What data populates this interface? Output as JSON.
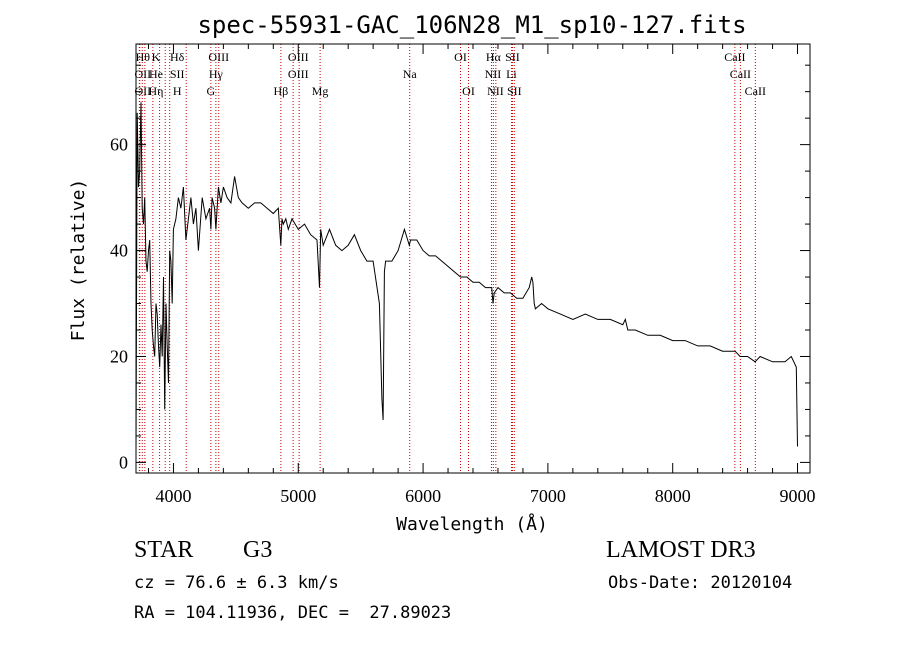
{
  "chart_data": {
    "type": "line",
    "title": "spec-55931-GAC_106N28_M1_sp10-127.fits",
    "xlabel": "Wavelength (Å)",
    "ylabel": "Flux (relative)",
    "xlim": [
      3700,
      9100
    ],
    "ylim": [
      -2,
      79
    ],
    "xticks": [
      4000,
      5000,
      6000,
      7000,
      8000,
      9000
    ],
    "yticks": [
      0,
      20,
      40,
      60
    ],
    "series": [
      {
        "name": "spectrum",
        "x": [
          3700,
          3710,
          3720,
          3730,
          3740,
          3750,
          3760,
          3770,
          3780,
          3790,
          3800,
          3810,
          3820,
          3830,
          3840,
          3850,
          3860,
          3870,
          3880,
          3890,
          3900,
          3910,
          3920,
          3930,
          3940,
          3950,
          3960,
          3970,
          3980,
          3990,
          4000,
          4020,
          4040,
          4060,
          4080,
          4100,
          4120,
          4140,
          4160,
          4180,
          4200,
          4230,
          4260,
          4290,
          4300,
          4310,
          4330,
          4340,
          4360,
          4380,
          4400,
          4430,
          4460,
          4490,
          4520,
          4550,
          4600,
          4650,
          4700,
          4750,
          4800,
          4840,
          4860,
          4870,
          4880,
          4900,
          4920,
          4950,
          5000,
          5050,
          5100,
          5150,
          5170,
          5180,
          5200,
          5250,
          5300,
          5350,
          5400,
          5450,
          5500,
          5550,
          5600,
          5650,
          5670,
          5680,
          5690,
          5700,
          5750,
          5800,
          5850,
          5890,
          5900,
          5950,
          6000,
          6050,
          6100,
          6150,
          6200,
          6250,
          6300,
          6350,
          6400,
          6450,
          6500,
          6550,
          6560,
          6570,
          6600,
          6650,
          6700,
          6750,
          6800,
          6850,
          6870,
          6880,
          6890,
          6900,
          6950,
          7000,
          7100,
          7200,
          7300,
          7400,
          7500,
          7600,
          7620,
          7640,
          7700,
          7800,
          7900,
          8000,
          8100,
          8200,
          8300,
          8400,
          8500,
          8540,
          8600,
          8660,
          8700,
          8800,
          8900,
          8950,
          8990,
          9000
        ],
        "values": [
          2,
          66,
          52,
          55,
          68,
          48,
          45,
          50,
          38,
          36,
          40,
          42,
          30,
          25,
          22,
          20,
          30,
          28,
          22,
          18,
          26,
          20,
          35,
          10,
          30,
          22,
          15,
          40,
          38,
          30,
          44,
          46,
          50,
          48,
          52,
          42,
          46,
          50,
          45,
          48,
          40,
          50,
          46,
          48,
          44,
          50,
          48,
          44,
          52,
          49,
          52,
          50,
          49,
          54,
          50,
          49,
          48,
          49,
          49,
          48,
          47,
          48,
          41,
          46,
          45,
          46,
          44,
          46,
          44,
          45,
          43,
          42,
          33,
          44,
          41,
          44,
          41,
          40,
          41,
          43,
          40,
          38,
          38,
          30,
          12,
          8,
          36,
          38,
          38,
          40,
          44,
          41,
          42,
          42,
          40,
          39,
          39,
          38,
          37,
          36,
          35,
          35,
          34,
          34,
          33,
          33,
          30,
          32,
          33,
          32,
          32,
          31,
          31,
          33,
          35,
          34,
          30,
          29,
          30,
          29,
          28,
          27,
          28,
          27,
          27,
          26,
          27,
          25,
          25,
          24,
          24,
          23,
          23,
          22,
          22,
          21,
          21,
          20,
          20,
          19,
          20,
          19,
          19,
          20,
          18,
          3
        ]
      }
    ],
    "line_markers": [
      {
        "row1": "Hθ",
        "row2": "OII",
        "row3": "OII"
      },
      {
        "row1": "K",
        "row2": "He",
        "row3": "Hη"
      },
      {
        "row1": "Hδ",
        "row2": "SII",
        "row3": "H"
      },
      {
        "row1": "OIII",
        "row2": "Hγ",
        "row3": "G"
      },
      {
        "row1": "OIII",
        "row2": "OIII",
        "row3": "Hβ"
      },
      {
        "row3": "Mg"
      },
      {
        "row2": "Na"
      },
      {
        "row1": "OI",
        "row3": "OI"
      },
      {
        "row1": "Hα",
        "row2": "NII",
        "row3": "NII"
      },
      {
        "row1": "SII",
        "row2": "Li",
        "row3": "SII"
      },
      {
        "row1": "CaII",
        "row2": "CaII",
        "row3": "CaII"
      }
    ]
  },
  "info": {
    "object_class": "STAR",
    "subclass": "G3",
    "survey": "LAMOST DR3",
    "redshift": "cz = 76.6 ± 6.3 km/s",
    "obs_date": "Obs-Date: 20120104",
    "coords": "RA = 104.11936, DEC =  27.89023"
  },
  "colors": {
    "axis": "#000000",
    "spectrum": "#000000",
    "lines": "#cc0000"
  }
}
